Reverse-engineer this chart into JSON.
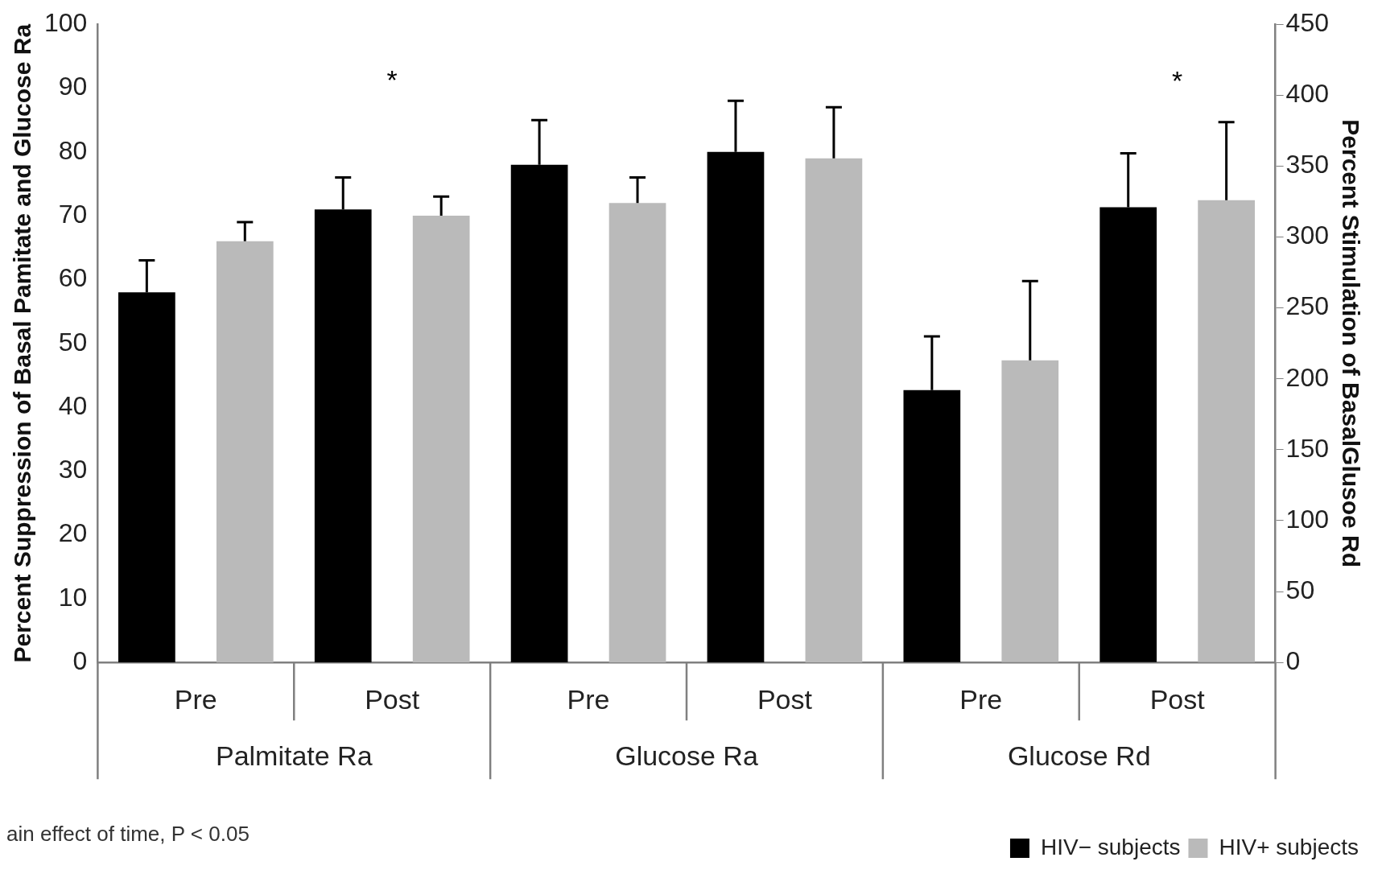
{
  "chart_data": {
    "type": "bar",
    "categories": [
      "Pre",
      "Post",
      "Pre",
      "Post",
      "Pre",
      "Post"
    ],
    "ylabel": "Percent Suppression of Basal Pamitate and Glucose Ra",
    "y2label": "Percent Stimulation of BasalGlusoe Rd",
    "ylim": [
      0,
      100
    ],
    "yticks": [
      0,
      10,
      20,
      30,
      40,
      50,
      60,
      70,
      80,
      90,
      100
    ],
    "y2lim": [
      0,
      450
    ],
    "y2ticks": [
      0,
      50,
      100,
      150,
      200,
      250,
      300,
      350,
      400,
      450
    ],
    "series": [
      {
        "name": "HIV− subjects",
        "color": "#000000",
        "values": [
          58,
          71,
          78,
          80,
          null,
          null
        ],
        "errors": [
          [
            58,
            63
          ],
          [
            71,
            76
          ],
          [
            78,
            85
          ],
          [
            80,
            88
          ],
          null,
          null
        ]
      },
      {
        "name": "HIV+ subjects",
        "color": "#bababa",
        "values": [
          66,
          70,
          72,
          79,
          null,
          null
        ],
        "errors": [
          [
            66,
            69
          ],
          [
            70,
            73
          ],
          [
            72,
            76
          ],
          [
            79,
            87
          ],
          null,
          null
        ]
      },
      {
        "axis": "y2",
        "color": "#000000",
        "values": [
          null,
          null,
          null,
          null,
          192,
          321
        ],
        "errors": [
          null,
          null,
          null,
          null,
          [
            192,
            230
          ],
          [
            321,
            359
          ]
        ]
      },
      {
        "axis": "y2",
        "color": "#bababa",
        "values": [
          null,
          null,
          null,
          null,
          213,
          326
        ],
        "errors": [
          null,
          null,
          null,
          null,
          [
            213,
            269
          ],
          [
            326,
            381
          ]
        ]
      }
    ],
    "annotations": [
      "Palmitate Ra",
      "Glucose Ra",
      "Glucose Rd",
      "*",
      "*",
      "ain effect of time, P < 0.05"
    ],
    "legend": "bottom right",
    "grid": false
  }
}
